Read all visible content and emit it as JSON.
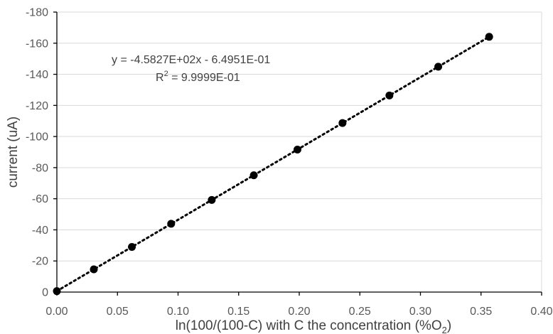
{
  "chart_data": {
    "type": "scatter",
    "xlabel": "ln(100/(100-C) with C the concentration (%O",
    "xlabel_subscript": "2",
    "xlabel_close": ")",
    "ylabel": "current (uA)",
    "xlim": [
      0,
      0.4
    ],
    "ylim": [
      0,
      -180
    ],
    "x_ticks": [
      0,
      0.05,
      0.1,
      0.15,
      0.2,
      0.25,
      0.3,
      0.35,
      0.4
    ],
    "x_tick_labels": [
      "0.00",
      "0.05",
      "0.10",
      "0.15",
      "0.20",
      "0.25",
      "0.30",
      "0.35",
      "0.40"
    ],
    "y_ticks": [
      0,
      -20,
      -40,
      -60,
      -80,
      -100,
      -120,
      -140,
      -160,
      -180
    ],
    "y_tick_labels": [
      "0",
      "-20",
      "-40",
      "-60",
      "-80",
      "-100",
      "-120",
      "-140",
      "-160",
      "-180"
    ],
    "grid": true,
    "series": [
      {
        "x": [
          0.0,
          0.0305,
          0.0619,
          0.0943,
          0.1278,
          0.1625,
          0.1985,
          0.2357,
          0.2744,
          0.3147,
          0.3567
        ],
        "y": [
          -0.6,
          -14.6,
          -29.0,
          -43.9,
          -59.2,
          -75.1,
          -91.6,
          -108.7,
          -126.4,
          -144.9,
          -164.1
        ]
      }
    ],
    "trendline": {
      "type": "linear",
      "slope": -458.27,
      "intercept": -0.64951,
      "style": "dotted"
    },
    "annotation": {
      "equation": "y = -4.5827E+02x - 6.4951E-01",
      "r2_prefix": "R",
      "r2_superscript": "2",
      "r2_value": " = 9.9999E-01"
    }
  },
  "colors": {
    "marker": "#000000",
    "grid": "#d9d9d9",
    "text": "#595959"
  }
}
